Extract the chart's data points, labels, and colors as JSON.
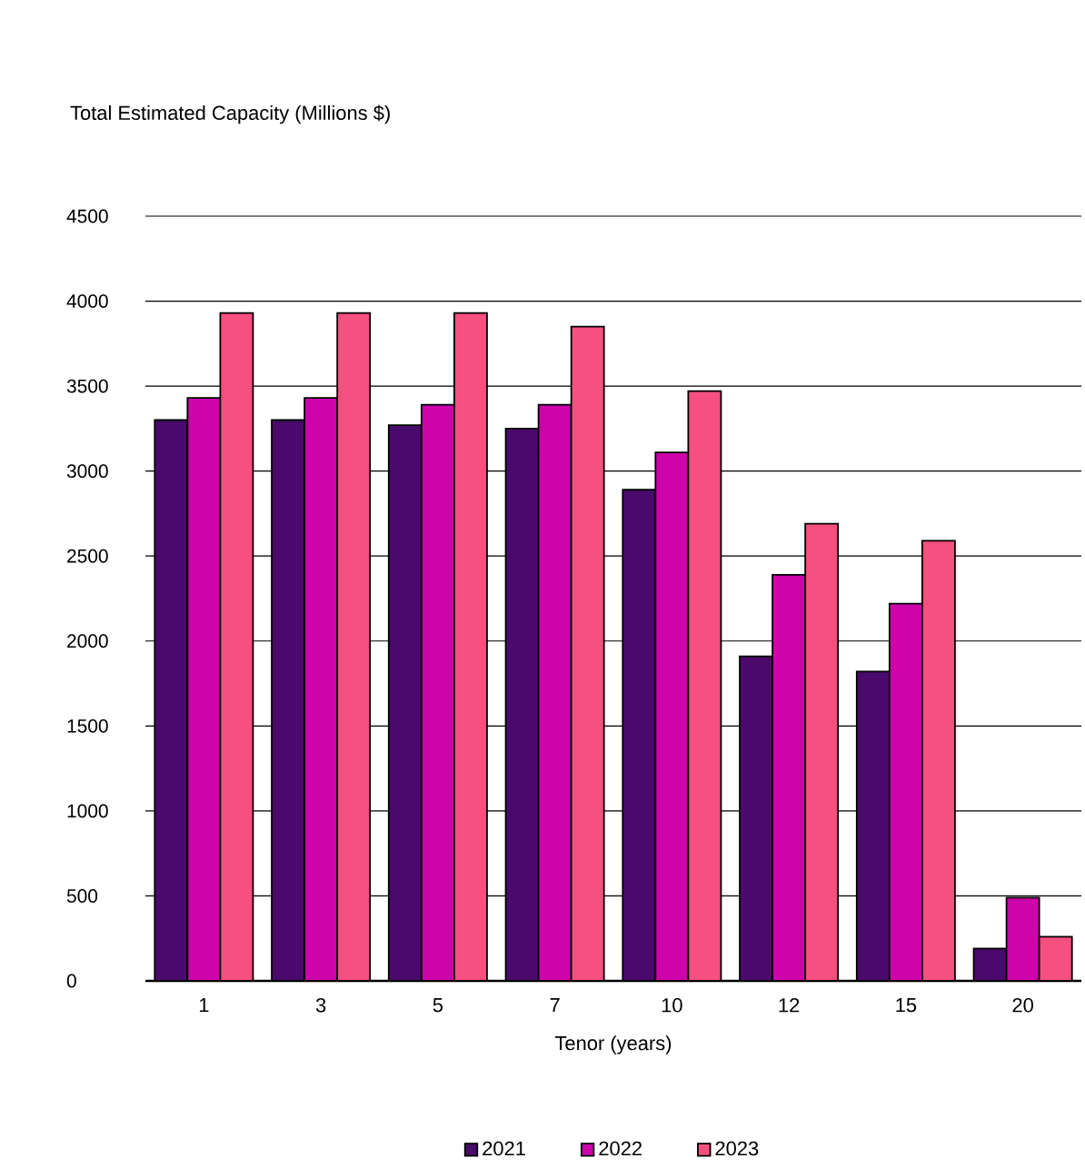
{
  "chart_data": {
    "type": "bar",
    "title": "Total Estimated Capacity (Millions $)",
    "xlabel": "Tenor (years)",
    "categories": [
      "1",
      "3",
      "5",
      "7",
      "10",
      "12",
      "15",
      "20"
    ],
    "series": [
      {
        "name": "2021",
        "color": "#4a0a6b",
        "values": [
          3300,
          3300,
          3270,
          3250,
          2890,
          1910,
          1820,
          190
        ]
      },
      {
        "name": "2022",
        "color": "#cc04aa",
        "values": [
          3430,
          3430,
          3390,
          3390,
          3110,
          2390,
          2220,
          490
        ]
      },
      {
        "name": "2023",
        "color": "#f5507f",
        "values": [
          3930,
          3930,
          3930,
          3850,
          3470,
          2690,
          2590,
          260
        ]
      }
    ],
    "ylim": [
      0,
      4500
    ],
    "yticks": [
      0,
      500,
      1000,
      1500,
      2000,
      2500,
      3000,
      3500,
      4000,
      4500
    ],
    "grid": "y",
    "legend": "bottom"
  }
}
